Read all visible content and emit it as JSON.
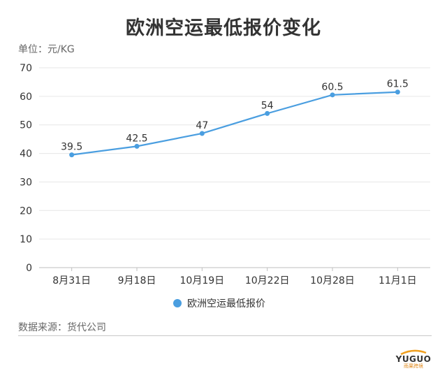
{
  "title": "欧洲空运最低报价变化",
  "unit_label": "单位：元/KG",
  "source_label": "数据来源：货代公司",
  "logo": {
    "text": "YUGUO",
    "sub": "雨果跨境"
  },
  "colors": {
    "series": "#4a9ee0",
    "grid": "#e6e6e6",
    "axis_text": "#333333"
  },
  "chart_data": {
    "type": "line",
    "categories": [
      "8月31日",
      "9月18日",
      "10月19日",
      "10月22日",
      "10月28日",
      "11月1日"
    ],
    "series": [
      {
        "name": "欧洲空运最低报价",
        "values": [
          39.5,
          42.5,
          47,
          54,
          60.5,
          61.5
        ]
      }
    ],
    "ylim": [
      0,
      70
    ],
    "yticks": [
      0,
      10,
      20,
      30,
      40,
      50,
      60,
      70
    ],
    "grid": true,
    "legend_position": "bottom"
  }
}
